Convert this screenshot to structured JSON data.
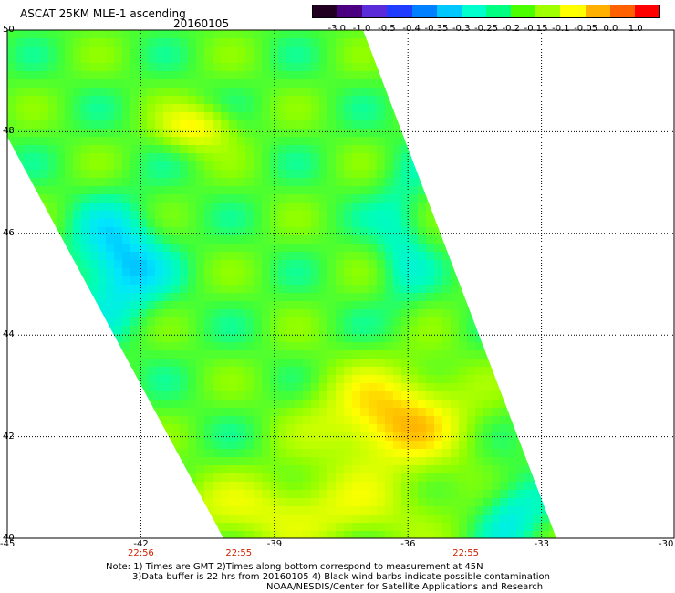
{
  "header": {
    "title": "ASCAT 25KM MLE-1 ascending",
    "date": "20160105"
  },
  "colorbar": {
    "labels": [
      "-3.0",
      "-1.0",
      "-0.5",
      "-0.4",
      "-0.35",
      "-0.3",
      "-0.25",
      "-0.2",
      "-0.15",
      "-0.1",
      "-0.05",
      "0.0",
      "1.0"
    ],
    "colors": [
      "#220022",
      "#4b0082",
      "#5a2bd8",
      "#1f3cff",
      "#0080ff",
      "#00c8ff",
      "#00ffcc",
      "#00ff80",
      "#4cff00",
      "#a0ff00",
      "#ffff00",
      "#ffb000",
      "#ff6000",
      "#ff0000"
    ]
  },
  "axes": {
    "lon_ticks": [
      "-45",
      "-42",
      "-39",
      "-36",
      "-33",
      "-30"
    ],
    "lat_ticks": [
      "50",
      "48",
      "46",
      "44",
      "42",
      "40"
    ],
    "time_labels": [
      {
        "lon": -42,
        "text": "22:56"
      },
      {
        "lon": -39.8,
        "text": "22:55"
      },
      {
        "lon": -34.7,
        "text": "22:55"
      }
    ]
  },
  "map": {
    "lon_range": [
      -45,
      -30
    ],
    "lat_range": [
      40,
      50
    ]
  },
  "notes": {
    "line1": "Note: 1) Times are GMT 2)Times along bottom correspond to measurement at 45N",
    "line2": "3)Data buffer is 22 hrs from 20160105 4) Black wind barbs indicate possible contamination",
    "line3": "NOAA/NESDIS/Center for Satellite Applications and Research"
  }
}
